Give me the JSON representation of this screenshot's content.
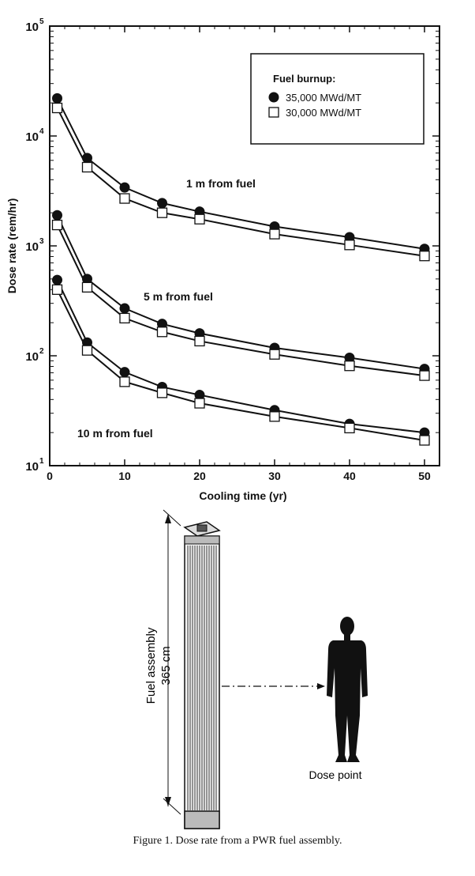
{
  "chart_data": {
    "type": "line",
    "xlabel": "Cooling time (yr)",
    "ylabel": "Dose rate (rem/hr)",
    "xlim": [
      0,
      52
    ],
    "ylim": [
      10,
      100000
    ],
    "y_scale": "log",
    "x_ticks": [
      0,
      10,
      20,
      30,
      40,
      50
    ],
    "y_ticks": [
      {
        "value": 10,
        "base": "10",
        "exp": "1"
      },
      {
        "value": 100,
        "base": "10",
        "exp": "2"
      },
      {
        "value": 1000,
        "base": "10",
        "exp": "3"
      },
      {
        "value": 10000,
        "base": "10",
        "exp": "4"
      },
      {
        "value": 100000,
        "base": "10",
        "exp": "5"
      }
    ],
    "legend": {
      "title": "Fuel burnup:",
      "position": "top-right",
      "entries": [
        {
          "label": "35,000 MWd/MT",
          "marker": "filled-circle"
        },
        {
          "label": "30,000 MWd/MT",
          "marker": "open-square"
        }
      ]
    },
    "x": [
      1,
      5,
      10,
      15,
      20,
      30,
      40,
      50
    ],
    "groups": [
      {
        "label": "1 m from fuel",
        "series": [
          {
            "name": "35,000 MWd/MT",
            "values": [
              22000,
              6300,
              3400,
              2450,
              2050,
              1500,
              1200,
              940
            ]
          },
          {
            "name": "30,000 MWd/MT",
            "values": [
              18000,
              5200,
              2700,
              2000,
              1750,
              1280,
              1020,
              810
            ]
          }
        ]
      },
      {
        "label": "5 m from fuel",
        "series": [
          {
            "name": "35,000 MWd/MT",
            "values": [
              1900,
              500,
              270,
              195,
              160,
              118,
              96,
              76
            ]
          },
          {
            "name": "30,000 MWd/MT",
            "values": [
              1550,
              420,
              220,
              165,
              136,
              103,
              81,
              66
            ]
          }
        ]
      },
      {
        "label": "10 m from fuel",
        "series": [
          {
            "name": "35,000 MWd/MT",
            "values": [
              490,
              132,
              71,
              52,
              44,
              32,
              24,
              20
            ]
          },
          {
            "name": "30,000 MWd/MT",
            "values": [
              400,
              112,
              58,
              46,
              37,
              28,
              22,
              17
            ]
          }
        ]
      }
    ]
  },
  "diagram": {
    "height_label_line1": "Fuel assembly",
    "height_label_line2": "365 cm",
    "dose_point_label": "Dose point"
  },
  "caption": "Figure 1.  Dose rate from a PWR fuel assembly."
}
